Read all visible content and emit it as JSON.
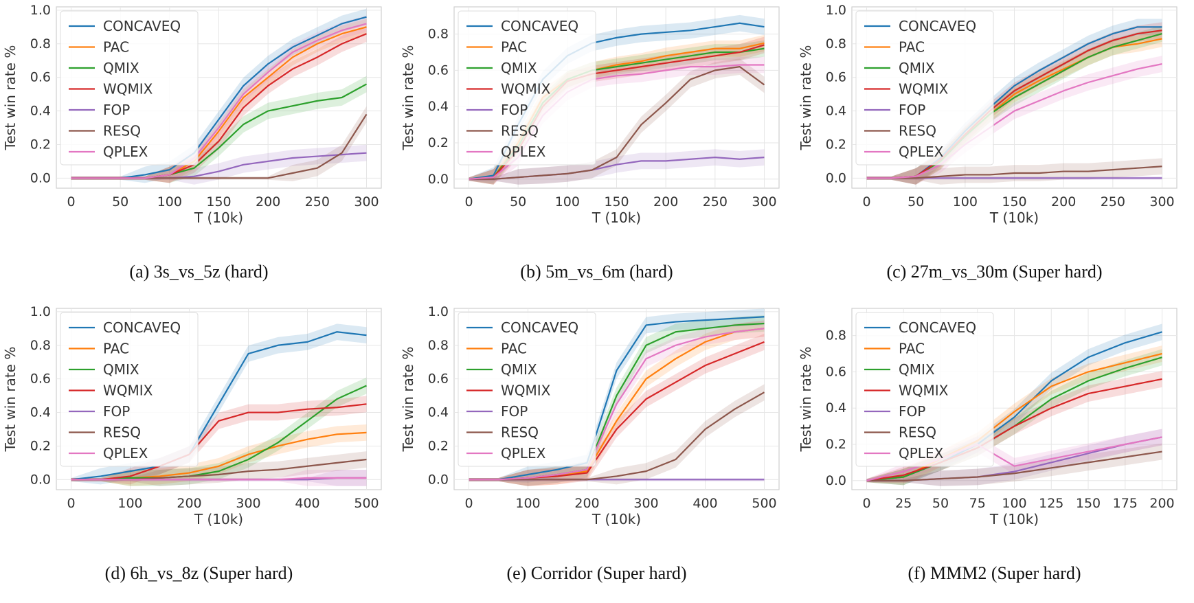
{
  "figure": {
    "legend_order": [
      "CONCAVEQ",
      "PAC",
      "QMIX",
      "WQMIX",
      "FOP",
      "RESQ",
      "QPLEX"
    ],
    "colors": {
      "CONCAVEQ": "#1f77b4",
      "PAC": "#ff7f0e",
      "QMIX": "#2ca02c",
      "WQMIX": "#d62728",
      "FOP": "#9467bd",
      "RESQ": "#8c564b",
      "QPLEX": "#e377c2"
    }
  },
  "chart_data": [
    {
      "type": "line",
      "caption": "(a) 3s_vs_5z (hard)",
      "xlabel": "T (10k)",
      "ylabel": "Test win rate %",
      "xlim": [
        -15,
        315
      ],
      "ylim": [
        -0.06,
        1.02
      ],
      "xticks": [
        0,
        50,
        100,
        150,
        200,
        250,
        300
      ],
      "yticks": [
        "0.0",
        "0.2",
        "0.4",
        "0.6",
        "0.8",
        "1.0"
      ],
      "grid": true,
      "legend_position": "upper-left",
      "legend_labels": [
        "CONCAVEQ",
        "PAC",
        "QMIX",
        "WQMIX",
        "FOP",
        "RESQ",
        "QPLEX"
      ],
      "x": [
        0,
        25,
        50,
        75,
        100,
        125,
        150,
        175,
        200,
        225,
        250,
        275,
        300
      ],
      "series": [
        {
          "name": "CONCAVEQ",
          "values": [
            0,
            0,
            0,
            0.02,
            0.05,
            0.15,
            0.35,
            0.55,
            0.68,
            0.78,
            0.85,
            0.92,
            0.96
          ]
        },
        {
          "name": "PAC",
          "values": [
            0,
            0,
            0,
            0,
            0.02,
            0.1,
            0.28,
            0.48,
            0.6,
            0.72,
            0.8,
            0.86,
            0.9
          ]
        },
        {
          "name": "QMIX",
          "values": [
            0,
            0,
            0,
            0,
            0.02,
            0.06,
            0.18,
            0.32,
            0.4,
            0.43,
            0.46,
            0.48,
            0.56
          ]
        },
        {
          "name": "WQMIX",
          "values": [
            0,
            0,
            0,
            0,
            0.02,
            0.08,
            0.22,
            0.42,
            0.55,
            0.65,
            0.72,
            0.8,
            0.86
          ]
        },
        {
          "name": "FOP",
          "values": [
            0,
            0,
            0,
            0,
            0,
            0.01,
            0.04,
            0.08,
            0.1,
            0.12,
            0.13,
            0.14,
            0.15
          ]
        },
        {
          "name": "RESQ",
          "values": [
            0,
            0,
            0,
            0,
            0,
            0,
            0,
            0,
            0,
            0.03,
            0.06,
            0.15,
            0.38
          ]
        },
        {
          "name": "QPLEX",
          "values": [
            0,
            0,
            0,
            0,
            0.02,
            0.12,
            0.3,
            0.5,
            0.63,
            0.75,
            0.82,
            0.88,
            0.92
          ]
        }
      ]
    },
    {
      "type": "line",
      "caption": "(b) 5m_vs_6m (hard)",
      "xlabel": "T (10k)",
      "ylabel": "Test win rate %",
      "xlim": [
        -15,
        315
      ],
      "ylim": [
        -0.05,
        0.95
      ],
      "xticks": [
        0,
        50,
        100,
        150,
        200,
        250,
        300
      ],
      "yticks": [
        "0.0",
        "0.2",
        "0.4",
        "0.6",
        "0.8"
      ],
      "grid": true,
      "legend_position": "upper-left",
      "legend_labels": [
        "CONCAVEQ",
        "PAC",
        "QMIX",
        "WQMIX",
        "FOP",
        "RESQ",
        "QPLEX"
      ],
      "x": [
        0,
        25,
        50,
        75,
        100,
        125,
        150,
        175,
        200,
        225,
        250,
        275,
        300
      ],
      "series": [
        {
          "name": "CONCAVEQ",
          "values": [
            0,
            0.02,
            0.3,
            0.55,
            0.68,
            0.75,
            0.78,
            0.8,
            0.81,
            0.82,
            0.84,
            0.86,
            0.84
          ]
        },
        {
          "name": "PAC",
          "values": [
            0,
            0.01,
            0.2,
            0.45,
            0.55,
            0.6,
            0.63,
            0.65,
            0.68,
            0.7,
            0.72,
            0.72,
            0.75
          ]
        },
        {
          "name": "QMIX",
          "values": [
            0,
            0.01,
            0.18,
            0.42,
            0.55,
            0.6,
            0.62,
            0.64,
            0.66,
            0.68,
            0.7,
            0.7,
            0.72
          ]
        },
        {
          "name": "WQMIX",
          "values": [
            0,
            0.01,
            0.16,
            0.4,
            0.54,
            0.58,
            0.6,
            0.62,
            0.64,
            0.66,
            0.68,
            0.7,
            0.74
          ]
        },
        {
          "name": "FOP",
          "values": [
            0,
            0,
            0.01,
            0.02,
            0.03,
            0.05,
            0.08,
            0.1,
            0.1,
            0.11,
            0.12,
            0.11,
            0.12
          ]
        },
        {
          "name": "RESQ",
          "values": [
            0,
            0,
            0.01,
            0.02,
            0.03,
            0.05,
            0.12,
            0.3,
            0.42,
            0.55,
            0.6,
            0.62,
            0.52
          ]
        },
        {
          "name": "QPLEX",
          "values": [
            0,
            0.01,
            0.12,
            0.35,
            0.48,
            0.55,
            0.57,
            0.58,
            0.6,
            0.62,
            0.62,
            0.63,
            0.63
          ]
        }
      ]
    },
    {
      "type": "line",
      "caption": "(c) 27m_vs_30m (Super hard)",
      "xlabel": "T (10k)",
      "ylabel": "Test win rate %",
      "xlim": [
        -15,
        315
      ],
      "ylim": [
        -0.06,
        1.02
      ],
      "xticks": [
        0,
        50,
        100,
        150,
        200,
        250,
        300
      ],
      "yticks": [
        "0.0",
        "0.2",
        "0.4",
        "0.6",
        "0.8",
        "1.0"
      ],
      "grid": true,
      "legend_position": "upper-left",
      "legend_labels": [
        "CONCAVEQ",
        "PAC",
        "QMIX",
        "WQMIX",
        "FOP",
        "RESQ",
        "QPLEX"
      ],
      "x": [
        0,
        25,
        50,
        75,
        100,
        125,
        150,
        175,
        200,
        225,
        250,
        275,
        300
      ],
      "series": [
        {
          "name": "CONCAVEQ",
          "values": [
            0,
            0,
            0.01,
            0.12,
            0.28,
            0.42,
            0.55,
            0.64,
            0.72,
            0.8,
            0.86,
            0.9,
            0.9
          ]
        },
        {
          "name": "PAC",
          "values": [
            0,
            0,
            0.01,
            0.1,
            0.25,
            0.38,
            0.5,
            0.58,
            0.65,
            0.72,
            0.78,
            0.8,
            0.83
          ]
        },
        {
          "name": "QMIX",
          "values": [
            0,
            0,
            0.01,
            0.1,
            0.25,
            0.38,
            0.48,
            0.56,
            0.64,
            0.72,
            0.78,
            0.82,
            0.86
          ]
        },
        {
          "name": "WQMIX",
          "values": [
            0,
            0,
            0.01,
            0.11,
            0.26,
            0.4,
            0.52,
            0.6,
            0.68,
            0.76,
            0.82,
            0.86,
            0.88
          ]
        },
        {
          "name": "FOP",
          "values": [
            0,
            0,
            0,
            0,
            0,
            0,
            0,
            0,
            0,
            0,
            0,
            0,
            0
          ]
        },
        {
          "name": "RESQ",
          "values": [
            0,
            0,
            0,
            0.01,
            0.02,
            0.02,
            0.03,
            0.03,
            0.04,
            0.04,
            0.05,
            0.06,
            0.07
          ]
        },
        {
          "name": "QPLEX",
          "values": [
            0,
            0,
            0.01,
            0.08,
            0.2,
            0.3,
            0.4,
            0.46,
            0.52,
            0.57,
            0.61,
            0.65,
            0.68
          ]
        }
      ]
    },
    {
      "type": "line",
      "caption": "(d) 6h_vs_8z (Super hard)",
      "xlabel": "T (10k)",
      "ylabel": "Test win rate %",
      "xlim": [
        -25,
        525
      ],
      "ylim": [
        -0.06,
        1.02
      ],
      "xticks": [
        0,
        100,
        200,
        300,
        400,
        500
      ],
      "yticks": [
        "0.0",
        "0.2",
        "0.4",
        "0.6",
        "0.8",
        "1.0"
      ],
      "grid": true,
      "legend_position": "upper-left",
      "legend_labels": [
        "CONCAVEQ",
        "PAC",
        "QMIX",
        "WQMIX",
        "FOP",
        "RESQ",
        "QPLEX"
      ],
      "x": [
        0,
        50,
        100,
        150,
        200,
        250,
        300,
        350,
        400,
        450,
        500
      ],
      "series": [
        {
          "name": "CONCAVEQ",
          "values": [
            0,
            0.02,
            0.05,
            0.08,
            0.15,
            0.45,
            0.75,
            0.8,
            0.82,
            0.88,
            0.86
          ]
        },
        {
          "name": "PAC",
          "values": [
            0,
            0,
            0.01,
            0.02,
            0.04,
            0.08,
            0.15,
            0.2,
            0.24,
            0.27,
            0.28
          ]
        },
        {
          "name": "QMIX",
          "values": [
            0,
            0,
            0.01,
            0.01,
            0.02,
            0.05,
            0.12,
            0.22,
            0.35,
            0.48,
            0.56
          ]
        },
        {
          "name": "WQMIX",
          "values": [
            0,
            0,
            0.02,
            0.08,
            0.15,
            0.35,
            0.4,
            0.4,
            0.42,
            0.43,
            0.45
          ]
        },
        {
          "name": "FOP",
          "values": [
            0,
            0,
            0,
            0,
            0,
            0,
            0,
            0,
            0,
            0.01,
            0.01
          ]
        },
        {
          "name": "RESQ",
          "values": [
            0,
            0,
            0,
            0.01,
            0.02,
            0.03,
            0.05,
            0.06,
            0.08,
            0.1,
            0.12
          ]
        },
        {
          "name": "QPLEX",
          "values": [
            0,
            0,
            0,
            0,
            0,
            0,
            0,
            0,
            0.01,
            0.01,
            0.01
          ]
        }
      ]
    },
    {
      "type": "line",
      "caption": "(e) Corridor (Super hard)",
      "xlabel": "T (10k)",
      "ylabel": "Test win rate %",
      "xlim": [
        -25,
        525
      ],
      "ylim": [
        -0.06,
        1.02
      ],
      "xticks": [
        0,
        100,
        200,
        300,
        400,
        500
      ],
      "yticks": [
        "0.0",
        "0.2",
        "0.4",
        "0.6",
        "0.8",
        "1.0"
      ],
      "grid": true,
      "legend_position": "upper-left",
      "legend_labels": [
        "CONCAVEQ",
        "PAC",
        "QMIX",
        "WQMIX",
        "FOP",
        "RESQ",
        "QPLEX"
      ],
      "x": [
        0,
        50,
        100,
        150,
        200,
        250,
        300,
        350,
        400,
        450,
        500
      ],
      "series": [
        {
          "name": "CONCAVEQ",
          "values": [
            0,
            0,
            0.03,
            0.06,
            0.1,
            0.65,
            0.92,
            0.94,
            0.95,
            0.96,
            0.97
          ]
        },
        {
          "name": "PAC",
          "values": [
            0,
            0,
            0.01,
            0.02,
            0.05,
            0.35,
            0.6,
            0.72,
            0.82,
            0.88,
            0.9
          ]
        },
        {
          "name": "QMIX",
          "values": [
            0,
            0,
            0.01,
            0.03,
            0.06,
            0.5,
            0.8,
            0.88,
            0.9,
            0.92,
            0.93
          ]
        },
        {
          "name": "WQMIX",
          "values": [
            0,
            0,
            0.01,
            0.02,
            0.04,
            0.3,
            0.48,
            0.58,
            0.68,
            0.75,
            0.82
          ]
        },
        {
          "name": "FOP",
          "values": [
            0,
            0,
            0,
            0,
            0,
            0,
            0,
            0,
            0,
            0,
            0
          ]
        },
        {
          "name": "RESQ",
          "values": [
            0,
            0,
            0,
            0,
            0,
            0.02,
            0.05,
            0.12,
            0.3,
            0.42,
            0.52
          ]
        },
        {
          "name": "QPLEX",
          "values": [
            0,
            0,
            0.01,
            0.03,
            0.06,
            0.45,
            0.72,
            0.8,
            0.85,
            0.88,
            0.9
          ]
        }
      ]
    },
    {
      "type": "line",
      "caption": "(f) MMM2 (Super hard)",
      "xlabel": "T (10k)",
      "ylabel": "Test win rate %",
      "xlim": [
        -10,
        210
      ],
      "ylim": [
        -0.05,
        0.95
      ],
      "xticks": [
        0,
        25,
        50,
        75,
        100,
        125,
        150,
        175,
        200
      ],
      "yticks": [
        "0.0",
        "0.2",
        "0.4",
        "0.6",
        "0.8"
      ],
      "grid": true,
      "legend_position": "upper-left",
      "legend_labels": [
        "CONCAVEQ",
        "PAC",
        "QMIX",
        "WQMIX",
        "FOP",
        "RESQ",
        "QPLEX"
      ],
      "x": [
        0,
        25,
        50,
        75,
        100,
        125,
        150,
        175,
        200
      ],
      "series": [
        {
          "name": "CONCAVEQ",
          "values": [
            0,
            0.02,
            0.1,
            0.2,
            0.35,
            0.55,
            0.68,
            0.76,
            0.82
          ]
        },
        {
          "name": "PAC",
          "values": [
            0,
            0.02,
            0.12,
            0.22,
            0.38,
            0.52,
            0.6,
            0.65,
            0.7
          ]
        },
        {
          "name": "QMIX",
          "values": [
            0,
            0.02,
            0.1,
            0.18,
            0.3,
            0.45,
            0.55,
            0.62,
            0.68
          ]
        },
        {
          "name": "WQMIX",
          "values": [
            0,
            0.03,
            0.1,
            0.18,
            0.3,
            0.4,
            0.48,
            0.52,
            0.56
          ]
        },
        {
          "name": "FOP",
          "values": [
            0,
            0,
            0.01,
            0.02,
            0.05,
            0.1,
            0.15,
            0.2,
            0.24
          ]
        },
        {
          "name": "RESQ",
          "values": [
            0,
            0,
            0.01,
            0.02,
            0.04,
            0.07,
            0.1,
            0.13,
            0.16
          ]
        },
        {
          "name": "QPLEX",
          "values": [
            0,
            0.05,
            0.12,
            0.2,
            0.08,
            0.12,
            0.16,
            0.2,
            0.24
          ]
        }
      ]
    }
  ]
}
